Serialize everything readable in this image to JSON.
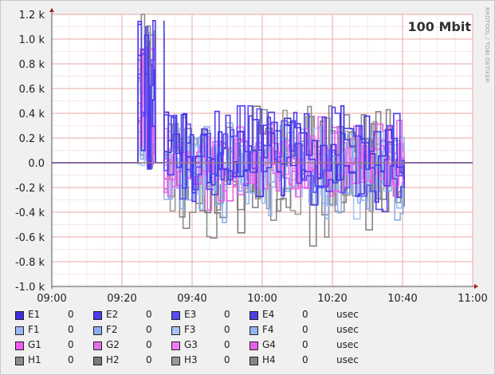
{
  "window": {
    "watermark": "RRDTOOL / TOBI OETIKER"
  },
  "chart_data": {
    "type": "line",
    "title": "100 Mbit",
    "xlabel": "",
    "ylabel": "",
    "x_ticks": [
      "09:00",
      "09:20",
      "09:40",
      "10:00",
      "10:20",
      "10:40",
      "11:00"
    ],
    "y_ticks": [
      "1.2 k",
      "1.0 k",
      "0.8 k",
      "0.6 k",
      "0.4 k",
      "0.2 k",
      "0.0",
      "-0.2 k",
      "-0.4 k",
      "-0.6 k",
      "-0.8 k",
      "-1.0 k"
    ],
    "xlim": [
      "09:00",
      "11:00"
    ],
    "ylim": [
      -1000,
      1200
    ],
    "grid": true,
    "legend_placement": "bottom",
    "unit": "usec",
    "series": [
      {
        "name": "E1",
        "color": "#3b2ee0",
        "current": "0",
        "peak": 1200,
        "trough": -440
      },
      {
        "name": "E2",
        "color": "#4a3cf0",
        "current": "0",
        "peak": 1150,
        "trough": -420
      },
      {
        "name": "E3",
        "color": "#5a4cf5",
        "current": "0",
        "peak": 1100,
        "trough": -400
      },
      {
        "name": "E4",
        "color": "#4b3fe8",
        "current": "0",
        "peak": 1000,
        "trough": -380
      },
      {
        "name": "F1",
        "color": "#9ab8f2",
        "current": "0",
        "peak": 780,
        "trough": -660
      },
      {
        "name": "F2",
        "color": "#8aaeee",
        "current": "0",
        "peak": 640,
        "trough": -600
      },
      {
        "name": "F3",
        "color": "#a8c4f6",
        "current": "0",
        "peak": 560,
        "trough": -560
      },
      {
        "name": "F4",
        "color": "#92b4ef",
        "current": "0",
        "peak": 520,
        "trough": -520
      },
      {
        "name": "G1",
        "color": "#ef5cef",
        "current": "0",
        "peak": 920,
        "trough": -400
      },
      {
        "name": "G2",
        "color": "#e070e8",
        "current": "0",
        "peak": 700,
        "trough": -380
      },
      {
        "name": "G3",
        "color": "#f27af2",
        "current": "0",
        "peak": 620,
        "trough": -360
      },
      {
        "name": "G4",
        "color": "#e860e8",
        "current": "0",
        "peak": 560,
        "trough": -340
      },
      {
        "name": "H1",
        "color": "#8c8c8c",
        "current": "0",
        "peak": 1200,
        "trough": -760
      },
      {
        "name": "H2",
        "color": "#7a7a7a",
        "current": "0",
        "peak": 1100,
        "trough": -740
      },
      {
        "name": "H3",
        "color": "#9a9a9a",
        "current": "0",
        "peak": 1050,
        "trough": -700
      },
      {
        "name": "H4",
        "color": "#858585",
        "current": "0",
        "peak": 1000,
        "trough": -680
      }
    ]
  },
  "legend": {
    "rows": [
      {
        "unit": "usec",
        "items": [
          {
            "name": "E1",
            "value": "0",
            "color": "#3b2ee0"
          },
          {
            "name": "E2",
            "value": "0",
            "color": "#4a3cf0"
          },
          {
            "name": "E3",
            "value": "0",
            "color": "#5a4cf5"
          },
          {
            "name": "E4",
            "value": "0",
            "color": "#4b3fe8"
          }
        ]
      },
      {
        "unit": "usec",
        "items": [
          {
            "name": "F1",
            "value": "0",
            "color": "#9ab8f2"
          },
          {
            "name": "F2",
            "value": "0",
            "color": "#8aaeee"
          },
          {
            "name": "F3",
            "value": "0",
            "color": "#a8c4f6"
          },
          {
            "name": "F4",
            "value": "0",
            "color": "#92b4ef"
          }
        ]
      },
      {
        "unit": "usec",
        "items": [
          {
            "name": "G1",
            "value": "0",
            "color": "#ef5cef"
          },
          {
            "name": "G2",
            "value": "0",
            "color": "#e070e8"
          },
          {
            "name": "G3",
            "value": "0",
            "color": "#f27af2"
          },
          {
            "name": "G4",
            "value": "0",
            "color": "#e860e8"
          }
        ]
      },
      {
        "unit": "usec",
        "items": [
          {
            "name": "H1",
            "value": "0",
            "color": "#8c8c8c"
          },
          {
            "name": "H2",
            "value": "0",
            "color": "#7a7a7a"
          },
          {
            "name": "H3",
            "value": "0",
            "color": "#9a9a9a"
          },
          {
            "name": "H4",
            "value": "0",
            "color": "#858585"
          }
        ]
      }
    ]
  }
}
